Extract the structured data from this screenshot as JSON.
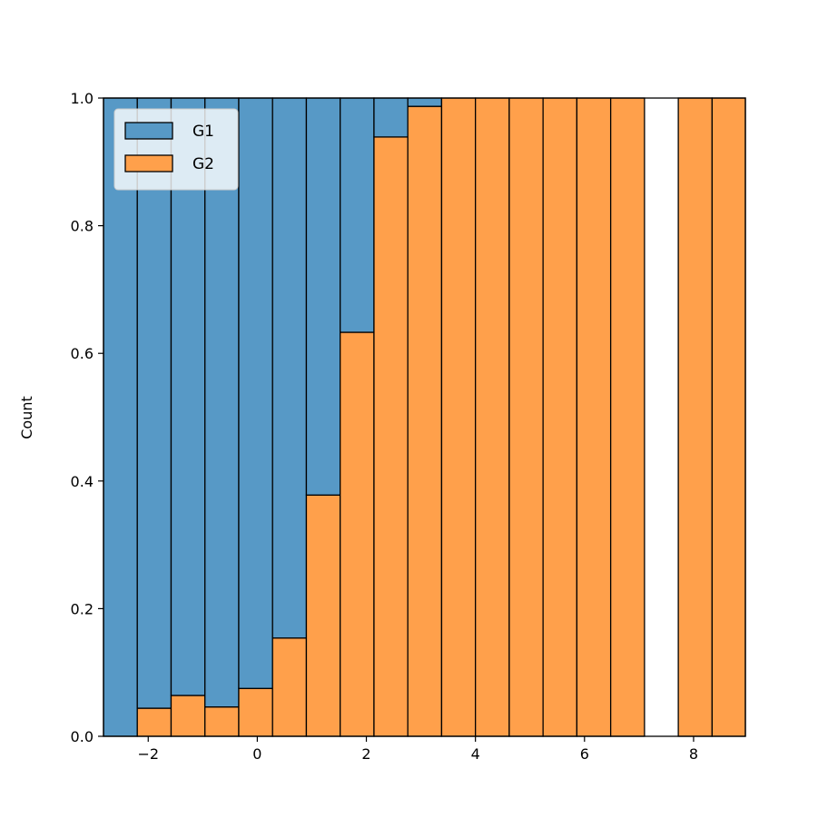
{
  "chart_data": {
    "type": "bar",
    "subtype": "stacked-fill-histogram",
    "title": "",
    "xlabel": "",
    "ylabel": "Count",
    "xlim": [
      -2.82,
      8.95
    ],
    "ylim": [
      0,
      1
    ],
    "bin_edges": [
      -2.82,
      -2.2,
      -1.58,
      -0.96,
      -0.34,
      0.28,
      0.9,
      1.52,
      2.14,
      2.76,
      3.38,
      4.0,
      4.62,
      5.24,
      5.86,
      6.48,
      7.1,
      7.72,
      8.34,
      8.95
    ],
    "series": [
      {
        "name": "G1",
        "color": "#5799c6",
        "values": [
          1.0,
          0.956,
          0.936,
          0.954,
          0.925,
          0.846,
          0.622,
          0.367,
          0.061,
          0.013,
          0,
          0,
          0,
          0,
          0,
          0,
          null,
          0,
          0
        ]
      },
      {
        "name": "G2",
        "color": "#ffa04b",
        "values": [
          0.0,
          0.044,
          0.064,
          0.046,
          0.075,
          0.154,
          0.378,
          0.633,
          0.939,
          0.987,
          1,
          1,
          1,
          1,
          1,
          1,
          null,
          1,
          1
        ]
      }
    ],
    "xticks": [
      -2,
      0,
      2,
      4,
      6,
      8
    ],
    "xtick_labels": [
      "−2",
      "0",
      "2",
      "4",
      "6",
      "8"
    ],
    "yticks": [
      0,
      0.2,
      0.4,
      0.6,
      0.8,
      1.0
    ],
    "ytick_labels": [
      "0.0",
      "0.2",
      "0.4",
      "0.6",
      "0.8",
      "1.0"
    ],
    "legend": {
      "placement": "top-left",
      "entries": [
        "G1",
        "G2"
      ]
    },
    "grid": false
  }
}
